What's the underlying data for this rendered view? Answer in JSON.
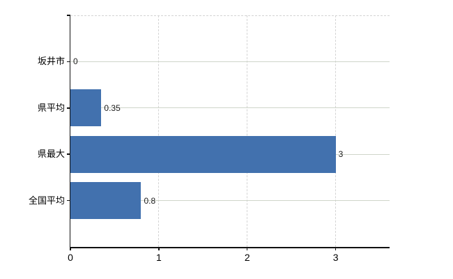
{
  "colors": {
    "bar": "#4271ae",
    "axis": "#111111",
    "horizontal_grid": "#cfd5ca",
    "vertical_grid": "#d4d4d4",
    "text": "#1c1c1c",
    "background": "#ffffff"
  },
  "chart_data": {
    "type": "bar",
    "orientation": "horizontal",
    "title": "",
    "categories": [
      "坂井市",
      "県平均",
      "県最大",
      "全国平均"
    ],
    "values": [
      0,
      0.35,
      3,
      0.8
    ],
    "value_labels": [
      "0",
      "0.35",
      "3",
      "0.8"
    ],
    "x_ticks": [
      0,
      1,
      2,
      3
    ],
    "x_tick_labels": [
      "0",
      "1",
      "2",
      "3"
    ],
    "xlim": [
      0,
      3.61
    ],
    "grid": {
      "horizontal": "solid at category centers",
      "vertical": "dashed at ticks 1-3",
      "top_border": "dashed"
    },
    "legend": "none"
  }
}
